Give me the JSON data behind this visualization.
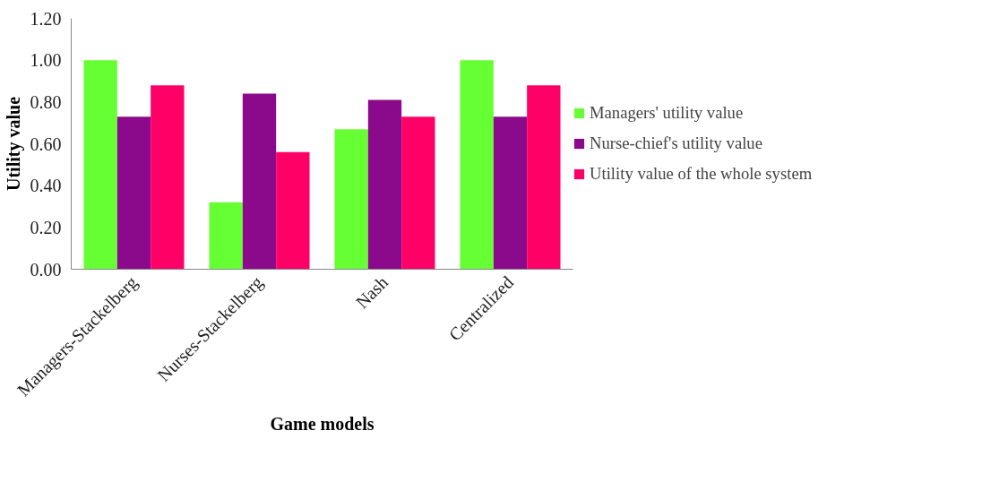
{
  "chart_data": {
    "type": "bar",
    "xlabel": "Game models",
    "ylabel": "Utility value",
    "categories": [
      "Managers-Stackelberg",
      "Nurses-Stackelberg",
      "Nash",
      "Centralized"
    ],
    "series": [
      {
        "name": "Managers' utility value",
        "color": "#66ff33",
        "values": [
          1.0,
          0.32,
          0.67,
          1.0
        ]
      },
      {
        "name": "Nurse-chief's utility value",
        "color": "#8b0a8b",
        "values": [
          0.73,
          0.84,
          0.81,
          0.73
        ]
      },
      {
        "name": "Utility value of the whole system",
        "color": "#ff0066",
        "values": [
          0.88,
          0.56,
          0.73,
          0.88
        ]
      }
    ],
    "ylim": [
      0,
      1.2
    ],
    "yticks": [
      {
        "value": 0,
        "label": "0.00"
      },
      {
        "value": 0.2,
        "label": "0.20"
      },
      {
        "value": 0.4,
        "label": "0.40"
      },
      {
        "value": 0.6,
        "label": "0.60"
      },
      {
        "value": 0.8,
        "label": "0.80"
      },
      {
        "value": 1.0,
        "label": "1.00"
      },
      {
        "value": 1.2,
        "label": "1.20"
      }
    ],
    "grid": false,
    "legend": "right"
  }
}
